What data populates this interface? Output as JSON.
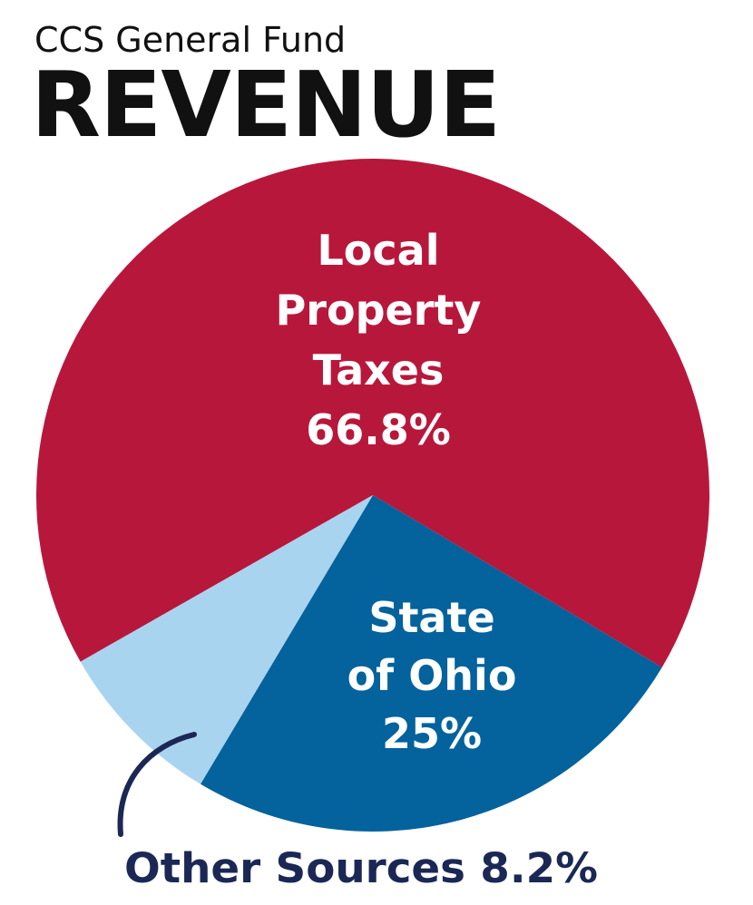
{
  "header": {
    "subtitle": "CCS General Fund",
    "title": "REVENUE"
  },
  "chart_data": {
    "type": "pie",
    "title": "REVENUE",
    "subtitle": "CCS General Fund",
    "slices": [
      {
        "label_lines": [
          "Local",
          "Property",
          "Taxes",
          "66.8%"
        ],
        "value": 66.8,
        "color": "#B8173C"
      },
      {
        "label_lines": [
          "State",
          "of Ohio",
          "25%"
        ],
        "value": 25,
        "color": "#04629C"
      },
      {
        "label_lines": [
          "Other Sources 8.2%"
        ],
        "value": 8.2,
        "color": "#A8D4EF"
      }
    ],
    "outside_label_color": "#1B2855"
  }
}
